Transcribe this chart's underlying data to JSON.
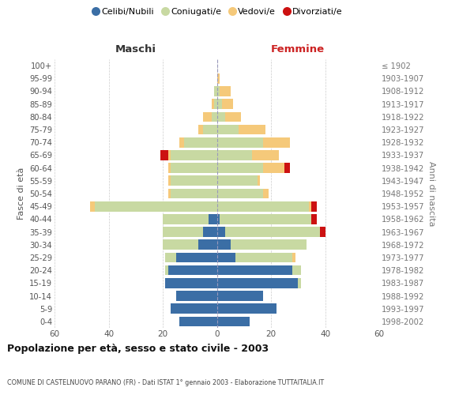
{
  "age_groups": [
    "100+",
    "95-99",
    "90-94",
    "85-89",
    "80-84",
    "75-79",
    "70-74",
    "65-69",
    "60-64",
    "55-59",
    "50-54",
    "45-49",
    "40-44",
    "35-39",
    "30-34",
    "25-29",
    "20-24",
    "15-19",
    "10-14",
    "5-9",
    "0-4"
  ],
  "birth_years": [
    "≤ 1902",
    "1903-1907",
    "1908-1912",
    "1913-1917",
    "1918-1922",
    "1923-1927",
    "1928-1932",
    "1933-1937",
    "1938-1942",
    "1943-1947",
    "1948-1952",
    "1953-1957",
    "1958-1962",
    "1963-1967",
    "1968-1972",
    "1973-1977",
    "1978-1982",
    "1983-1987",
    "1988-1992",
    "1993-1997",
    "1998-2002"
  ],
  "maschi": {
    "celibi": [
      0,
      0,
      0,
      0,
      0,
      0,
      0,
      0,
      0,
      0,
      0,
      0,
      3,
      5,
      7,
      15,
      18,
      19,
      15,
      17,
      14
    ],
    "coniugati": [
      0,
      0,
      1,
      1,
      2,
      5,
      12,
      17,
      17,
      17,
      17,
      45,
      17,
      15,
      13,
      4,
      1,
      0,
      0,
      0,
      0
    ],
    "vedovi": [
      0,
      0,
      0,
      1,
      3,
      2,
      2,
      1,
      1,
      1,
      1,
      2,
      0,
      0,
      0,
      0,
      0,
      0,
      0,
      0,
      0
    ],
    "divorziati": [
      0,
      0,
      0,
      0,
      0,
      0,
      0,
      3,
      0,
      0,
      0,
      0,
      0,
      0,
      0,
      0,
      0,
      0,
      0,
      0,
      0
    ]
  },
  "femmine": {
    "nubili": [
      0,
      0,
      0,
      0,
      0,
      0,
      0,
      0,
      0,
      0,
      0,
      0,
      1,
      3,
      5,
      7,
      28,
      30,
      17,
      22,
      12
    ],
    "coniugate": [
      0,
      0,
      1,
      2,
      3,
      8,
      17,
      13,
      17,
      15,
      17,
      34,
      34,
      35,
      28,
      21,
      3,
      1,
      0,
      0,
      0
    ],
    "vedove": [
      0,
      1,
      4,
      4,
      6,
      10,
      10,
      10,
      8,
      1,
      2,
      1,
      0,
      0,
      0,
      1,
      0,
      0,
      0,
      0,
      0
    ],
    "divorziate": [
      0,
      0,
      0,
      0,
      0,
      0,
      0,
      0,
      2,
      0,
      0,
      2,
      2,
      2,
      0,
      0,
      0,
      0,
      0,
      0,
      0
    ]
  },
  "colors": {
    "celibi_nubili": "#3b6ea5",
    "coniugati": "#c8d9a2",
    "vedovi": "#f5c97a",
    "divorziati": "#cc1111"
  },
  "xlim": 60,
  "title": "Popolazione per età, sesso e stato civile - 2003",
  "subtitle": "COMUNE DI CASTELNUOVO PARANO (FR) - Dati ISTAT 1° gennaio 2003 - Elaborazione TUTTAITALIA.IT",
  "ylabel_left": "Fasce di età",
  "ylabel_right": "Anni di nascita",
  "legend_labels": [
    "Celibi/Nubili",
    "Coniugati/e",
    "Vedovi/e",
    "Divorziati/e"
  ],
  "maschi_label": "Maschi",
  "femmine_label": "Femmine",
  "background_color": "#ffffff",
  "grid_color": "#cccccc"
}
